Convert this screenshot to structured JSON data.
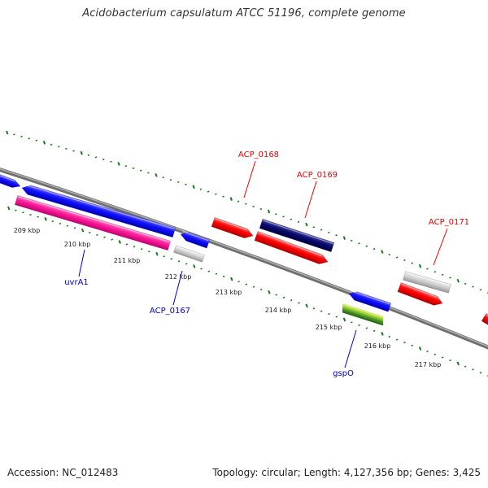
{
  "title": "Acidobacterium capsulatum ATCC 51196, complete genome",
  "footer": {
    "accession": "Accession: NC_012483",
    "topology": "Topology: circular; Length: 4,127,356 bp; Genes: 3,425"
  },
  "colors": {
    "forward_strand_label": "#0000cc",
    "reverse_strand_label": "#ee0000",
    "tick": "#1a7a1a",
    "backbone": "#808080"
  },
  "ticks": [
    "209 kbp",
    "210 kbp",
    "211 kbp",
    "212 kbp",
    "213 kbp",
    "214 kbp",
    "215 kbp",
    "216 kbp",
    "217 kbp"
  ],
  "gene_labels": [
    {
      "text": "uvrA1",
      "color": "#0000cc"
    },
    {
      "text": "ACP_0167",
      "color": "#0000cc"
    },
    {
      "text": "gspO",
      "color": "#0000cc"
    },
    {
      "text": "ACP_0168",
      "color": "#ee0000"
    },
    {
      "text": "ACP_0169",
      "color": "#ee0000"
    },
    {
      "text": "ACP_0171",
      "color": "#ee0000"
    }
  ]
}
